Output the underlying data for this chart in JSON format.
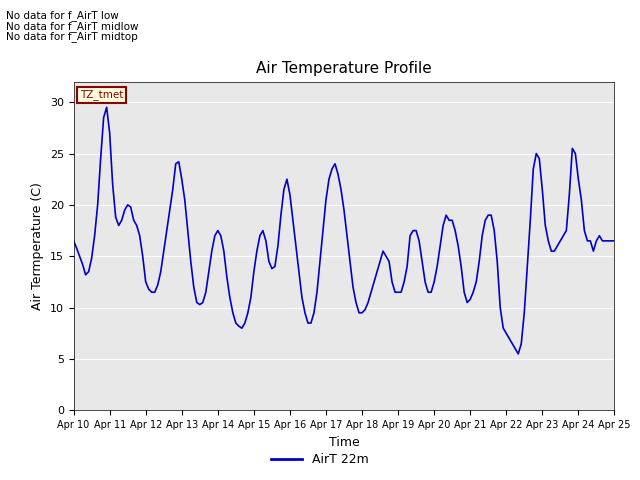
{
  "title": "Air Temperature Profile",
  "xlabel": "Time",
  "ylabel": "Air Termperature (C)",
  "legend_label": "AirT 22m",
  "annotations": [
    "No data for f_AirT low",
    "No data for f_AirT midlow",
    "No data for f_AirT midtop"
  ],
  "tz_label": "TZ_tmet",
  "line_color": "#0000cc",
  "bg_color": "#e8e8e8",
  "ylim": [
    0,
    32
  ],
  "yticks": [
    0,
    5,
    10,
    15,
    20,
    25,
    30
  ],
  "x_labels": [
    "Apr 10",
    "Apr 11",
    "Apr 12",
    "Apr 13",
    "Apr 14",
    "Apr 15",
    "Apr 16",
    "Apr 17",
    "Apr 18",
    "Apr 19",
    "Apr 20",
    "Apr 21",
    "Apr 22",
    "Apr 23",
    "Apr 24",
    "Apr 25"
  ],
  "x_positions": [
    0,
    1,
    2,
    3,
    4,
    5,
    6,
    7,
    8,
    9,
    10,
    11,
    12,
    13,
    14,
    15
  ],
  "time_hours": [
    0.0,
    0.083,
    0.167,
    0.25,
    0.333,
    0.417,
    0.5,
    0.583,
    0.667,
    0.75,
    0.833,
    0.917,
    1.0,
    1.083,
    1.167,
    1.25,
    1.333,
    1.417,
    1.5,
    1.583,
    1.667,
    1.75,
    1.833,
    1.917,
    2.0,
    2.083,
    2.167,
    2.25,
    2.333,
    2.417,
    2.5,
    2.583,
    2.667,
    2.75,
    2.833,
    2.917,
    3.0,
    3.083,
    3.167,
    3.25,
    3.333,
    3.417,
    3.5,
    3.583,
    3.667,
    3.75,
    3.833,
    3.917,
    4.0,
    4.083,
    4.167,
    4.25,
    4.333,
    4.417,
    4.5,
    4.583,
    4.667,
    4.75,
    4.833,
    4.917,
    5.0,
    5.083,
    5.167,
    5.25,
    5.333,
    5.417,
    5.5,
    5.583,
    5.667,
    5.75,
    5.833,
    5.917,
    6.0,
    6.083,
    6.167,
    6.25,
    6.333,
    6.417,
    6.5,
    6.583,
    6.667,
    6.75,
    6.833,
    6.917,
    7.0,
    7.083,
    7.167,
    7.25,
    7.333,
    7.417,
    7.5,
    7.583,
    7.667,
    7.75,
    7.833,
    7.917,
    8.0,
    8.083,
    8.167,
    8.25,
    8.333,
    8.417,
    8.5,
    8.583,
    8.667,
    8.75,
    8.833,
    8.917,
    9.0,
    9.083,
    9.167,
    9.25,
    9.333,
    9.417,
    9.5,
    9.583,
    9.667,
    9.75,
    9.833,
    9.917,
    10.0,
    10.083,
    10.167,
    10.25,
    10.333,
    10.417,
    10.5,
    10.583,
    10.667,
    10.75,
    10.833,
    10.917,
    11.0,
    11.083,
    11.167,
    11.25,
    11.333,
    11.417,
    11.5,
    11.583,
    11.667,
    11.75,
    11.833,
    11.917,
    12.0,
    12.083,
    12.167,
    12.25,
    12.333,
    12.417,
    12.5,
    12.583,
    12.667,
    12.75,
    12.833,
    12.917,
    13.0,
    13.083,
    13.167,
    13.25,
    13.333,
    13.417,
    13.5,
    13.583,
    13.667,
    13.75,
    13.833,
    13.917,
    14.0,
    14.083,
    14.167,
    14.25,
    14.333,
    14.417,
    14.5,
    14.583,
    14.667,
    14.75,
    14.833,
    14.917,
    15.0
  ],
  "temperatures": [
    16.5,
    15.8,
    15.0,
    14.2,
    13.2,
    13.5,
    14.8,
    17.0,
    20.0,
    24.5,
    28.5,
    29.5,
    27.0,
    22.0,
    18.8,
    18.0,
    18.5,
    19.5,
    20.0,
    19.8,
    18.5,
    18.0,
    17.0,
    15.0,
    12.5,
    11.8,
    11.5,
    11.5,
    12.2,
    13.5,
    15.5,
    17.5,
    19.5,
    21.5,
    24.0,
    24.2,
    22.5,
    20.5,
    17.5,
    14.5,
    12.0,
    10.5,
    10.3,
    10.5,
    11.5,
    13.5,
    15.5,
    17.0,
    17.5,
    17.0,
    15.5,
    13.0,
    11.0,
    9.5,
    8.5,
    8.2,
    8.0,
    8.5,
    9.5,
    11.0,
    13.5,
    15.5,
    17.0,
    17.5,
    16.5,
    14.5,
    13.8,
    14.0,
    16.0,
    19.0,
    21.5,
    22.5,
    21.0,
    18.5,
    16.0,
    13.5,
    11.0,
    9.5,
    8.5,
    8.5,
    9.5,
    11.5,
    14.5,
    17.5,
    20.5,
    22.5,
    23.5,
    24.0,
    23.0,
    21.5,
    19.5,
    17.0,
    14.5,
    12.0,
    10.5,
    9.5,
    9.5,
    9.8,
    10.5,
    11.5,
    12.5,
    13.5,
    14.5,
    15.5,
    15.0,
    14.5,
    12.5,
    11.5,
    11.5,
    11.5,
    12.5,
    14.0,
    17.0,
    17.5,
    17.5,
    16.5,
    14.5,
    12.5,
    11.5,
    11.5,
    12.5,
    14.0,
    16.0,
    18.0,
    19.0,
    18.5,
    18.5,
    17.5,
    16.0,
    14.0,
    11.5,
    10.5,
    10.8,
    11.5,
    12.5,
    14.5,
    17.0,
    18.5,
    19.0,
    19.0,
    17.5,
    14.5,
    10.0,
    8.0,
    7.5,
    7.0,
    6.5,
    6.0,
    5.5,
    6.5,
    9.5,
    14.0,
    18.5,
    23.5,
    25.0,
    24.5,
    21.5,
    18.0,
    16.5,
    15.5,
    15.5,
    16.0,
    16.5,
    17.0,
    17.5,
    21.0,
    25.5,
    25.0,
    22.5,
    20.5,
    17.5,
    16.5,
    16.5,
    15.5,
    16.5,
    17.0,
    16.5,
    16.5,
    16.5,
    16.5,
    16.5
  ]
}
